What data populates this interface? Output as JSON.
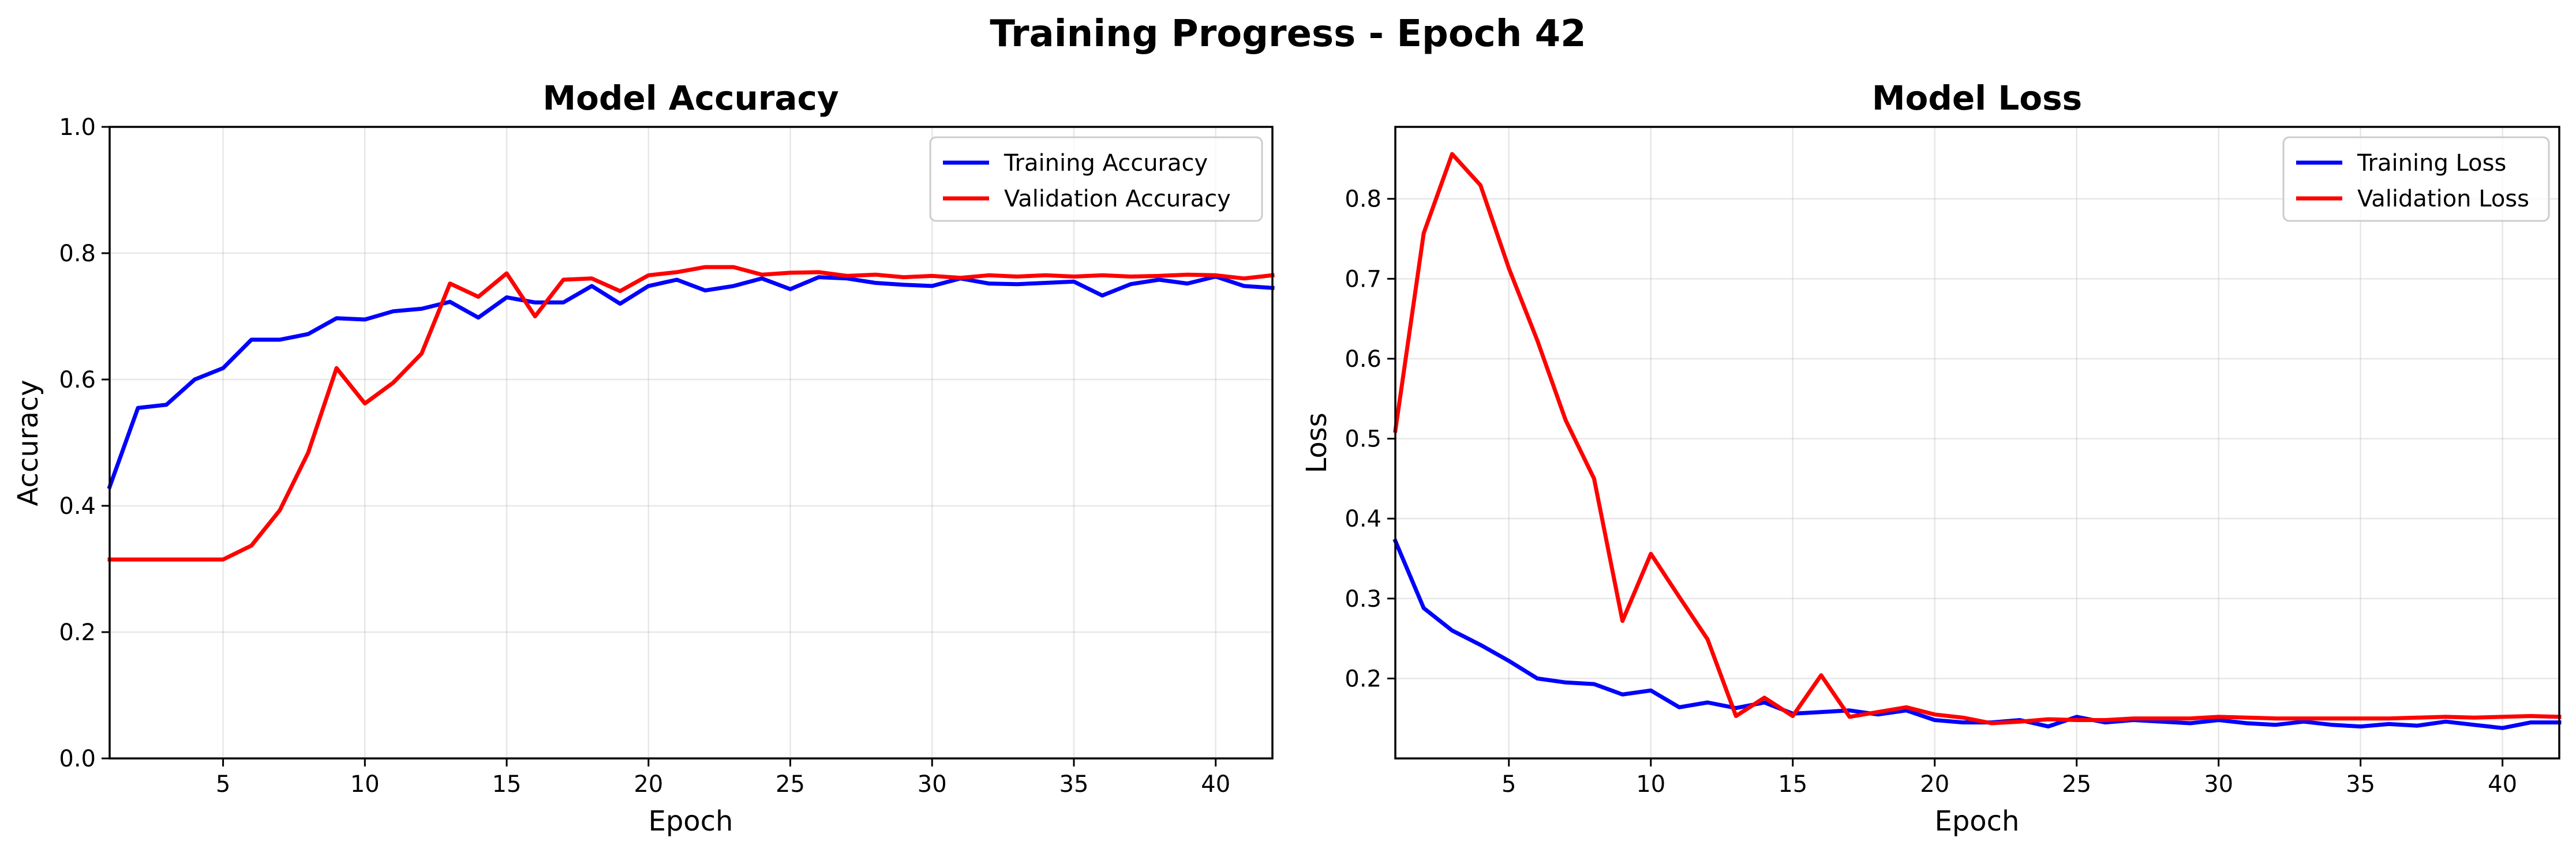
{
  "figure_title": "Training Progress - Epoch 42",
  "colors": {
    "training": "#0000ff",
    "validation": "#ff0000"
  },
  "chart_data": [
    {
      "type": "line",
      "title": "Model Accuracy",
      "xlabel": "Epoch",
      "ylabel": "Accuracy",
      "xlim": [
        1,
        42
      ],
      "ylim": [
        0,
        1
      ],
      "xticks": [
        5,
        10,
        15,
        20,
        25,
        30,
        35,
        40
      ],
      "yticks": [
        "0.0",
        "0.2",
        "0.4",
        "0.6",
        "0.8",
        "1.0"
      ],
      "grid": true,
      "legend_position": "upper right",
      "x": [
        1,
        2,
        3,
        4,
        5,
        6,
        7,
        8,
        9,
        10,
        11,
        12,
        13,
        14,
        15,
        16,
        17,
        18,
        19,
        20,
        21,
        22,
        23,
        24,
        25,
        26,
        27,
        28,
        29,
        30,
        31,
        32,
        33,
        34,
        35,
        36,
        37,
        38,
        39,
        40,
        41,
        42
      ],
      "series": [
        {
          "name": "Training Accuracy",
          "color": "#0000ff",
          "values": [
            0.43,
            0.555,
            0.56,
            0.6,
            0.618,
            0.663,
            0.663,
            0.672,
            0.697,
            0.695,
            0.708,
            0.712,
            0.723,
            0.698,
            0.73,
            0.722,
            0.722,
            0.748,
            0.72,
            0.748,
            0.758,
            0.741,
            0.748,
            0.76,
            0.743,
            0.762,
            0.76,
            0.753,
            0.75,
            0.748,
            0.76,
            0.752,
            0.751,
            0.753,
            0.755,
            0.733,
            0.751,
            0.758,
            0.752,
            0.763,
            0.748,
            0.745
          ]
        },
        {
          "name": "Validation Accuracy",
          "color": "#ff0000",
          "values": [
            0.315,
            0.315,
            0.315,
            0.315,
            0.315,
            0.337,
            0.393,
            0.484,
            0.618,
            0.562,
            0.595,
            0.641,
            0.752,
            0.731,
            0.768,
            0.7,
            0.758,
            0.76,
            0.74,
            0.765,
            0.77,
            0.778,
            0.778,
            0.766,
            0.769,
            0.77,
            0.764,
            0.766,
            0.762,
            0.764,
            0.761,
            0.765,
            0.763,
            0.765,
            0.763,
            0.765,
            0.763,
            0.764,
            0.766,
            0.765,
            0.76,
            0.765
          ]
        }
      ]
    },
    {
      "type": "line",
      "title": "Model Loss",
      "xlabel": "Epoch",
      "ylabel": "Loss",
      "xlim": [
        1,
        42
      ],
      "ylim": [
        0.1,
        0.89
      ],
      "xticks": [
        5,
        10,
        15,
        20,
        25,
        30,
        35,
        40
      ],
      "yticks": [
        "0.2",
        "0.3",
        "0.4",
        "0.5",
        "0.6",
        "0.7",
        "0.8"
      ],
      "grid": true,
      "legend_position": "upper right",
      "x": [
        1,
        2,
        3,
        4,
        5,
        6,
        7,
        8,
        9,
        10,
        11,
        12,
        13,
        14,
        15,
        16,
        17,
        18,
        19,
        20,
        21,
        22,
        23,
        24,
        25,
        26,
        27,
        28,
        29,
        30,
        31,
        32,
        33,
        34,
        35,
        36,
        37,
        38,
        39,
        40,
        41,
        42
      ],
      "series": [
        {
          "name": "Training Loss",
          "color": "#0000ff",
          "values": [
            0.372,
            0.288,
            0.26,
            0.242,
            0.222,
            0.2,
            0.195,
            0.193,
            0.18,
            0.185,
            0.164,
            0.17,
            0.163,
            0.17,
            0.156,
            0.158,
            0.16,
            0.155,
            0.16,
            0.148,
            0.145,
            0.145,
            0.148,
            0.14,
            0.152,
            0.145,
            0.148,
            0.146,
            0.144,
            0.148,
            0.144,
            0.142,
            0.146,
            0.142,
            0.14,
            0.143,
            0.141,
            0.146,
            0.142,
            0.138,
            0.145,
            0.145
          ]
        },
        {
          "name": "Validation Loss",
          "color": "#ff0000",
          "values": [
            0.51,
            0.757,
            0.856,
            0.817,
            0.713,
            0.623,
            0.523,
            0.45,
            0.272,
            0.356,
            0.302,
            0.249,
            0.153,
            0.176,
            0.153,
            0.204,
            0.152,
            0.158,
            0.164,
            0.155,
            0.151,
            0.144,
            0.146,
            0.149,
            0.148,
            0.148,
            0.15,
            0.15,
            0.15,
            0.152,
            0.151,
            0.15,
            0.15,
            0.15,
            0.15,
            0.15,
            0.151,
            0.152,
            0.151,
            0.152,
            0.153,
            0.152
          ]
        }
      ]
    }
  ]
}
